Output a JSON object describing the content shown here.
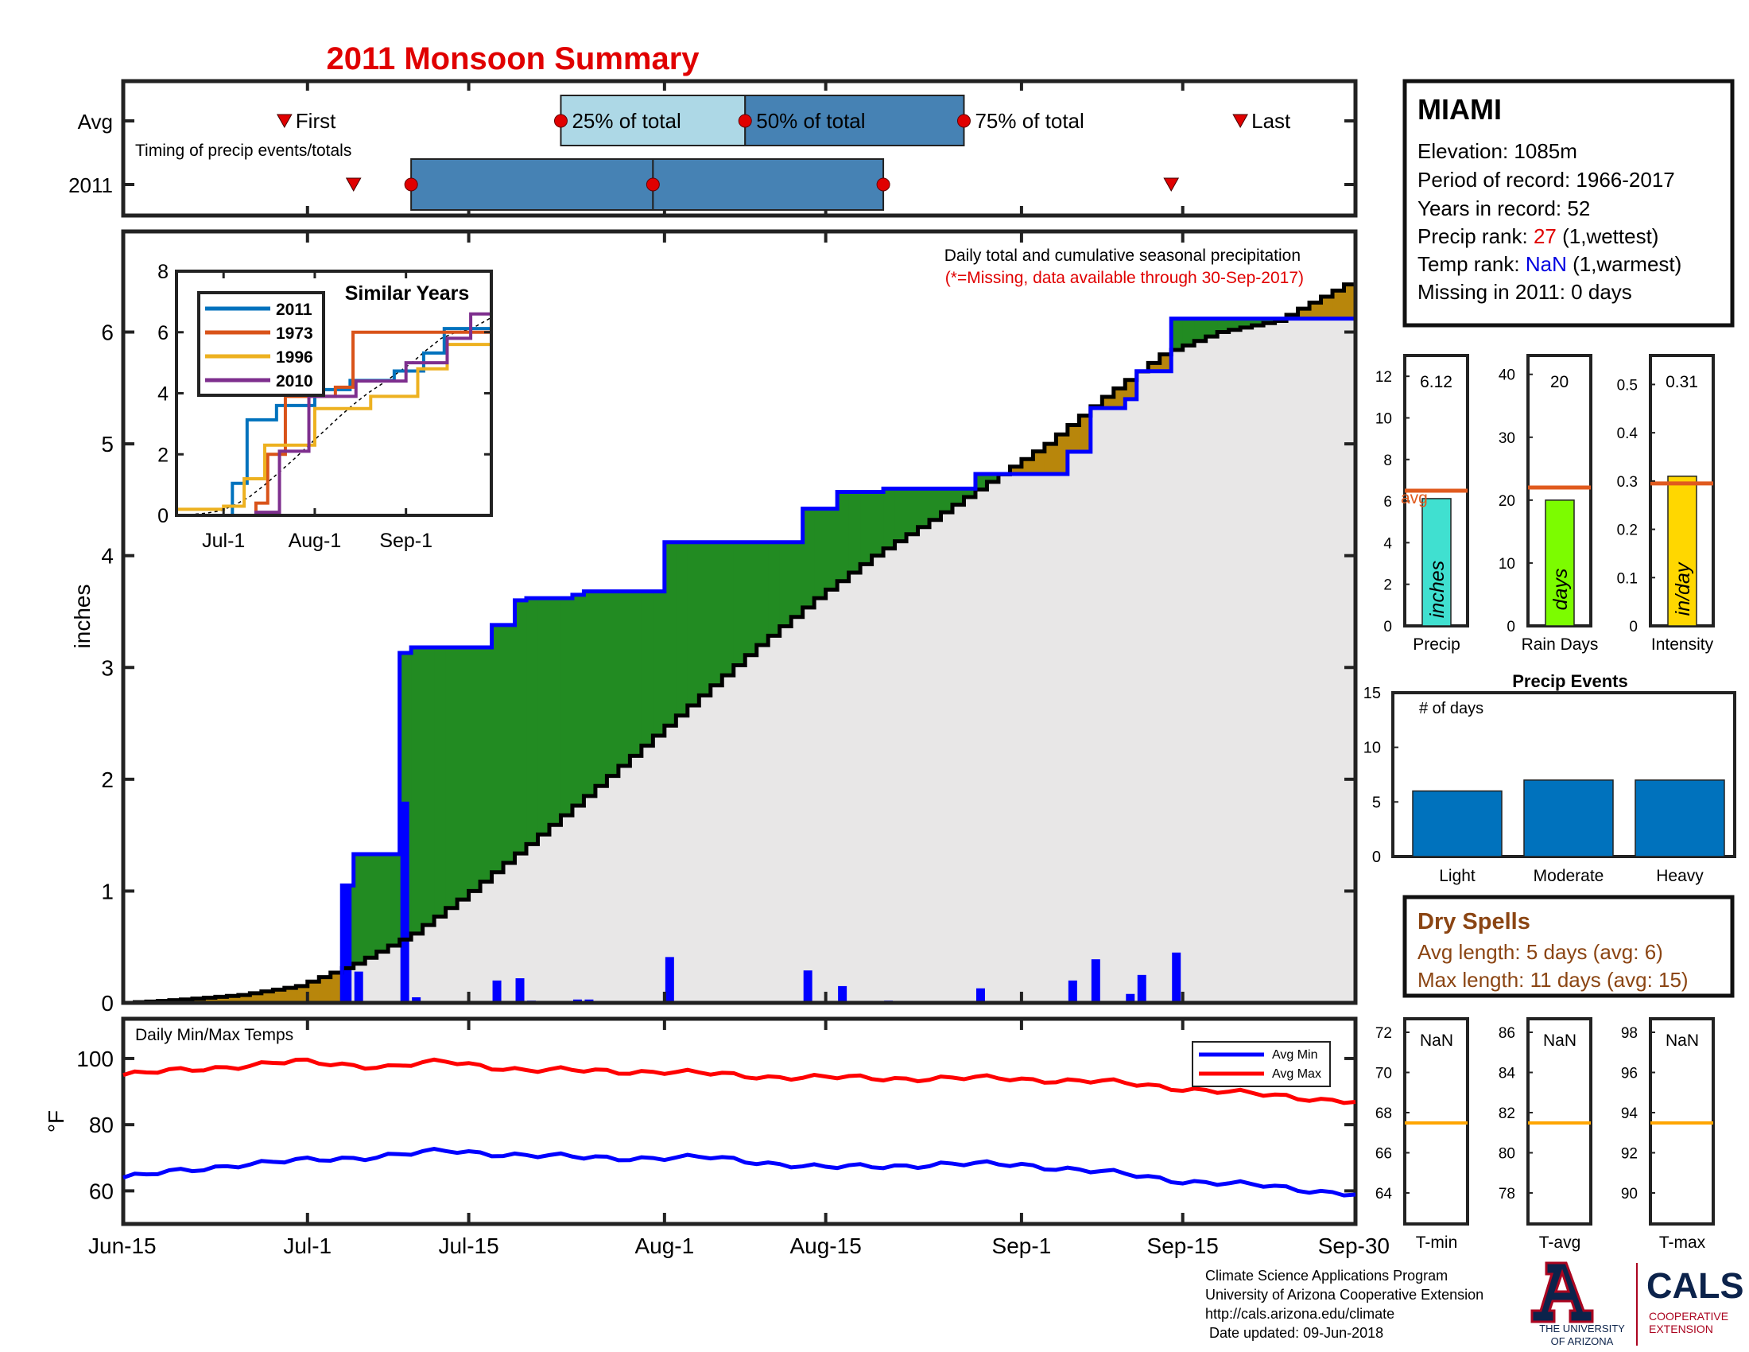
{
  "title": "2011 Monsoon Summary",
  "x_axis": {
    "ticks": [
      "Jun-15",
      "Jul-1",
      "Jul-15",
      "Aug-1",
      "Aug-15",
      "Sep-1",
      "Sep-15",
      "Sep-30"
    ],
    "tick_days": [
      0,
      16,
      30,
      47,
      61,
      78,
      92,
      107
    ]
  },
  "timing": {
    "row_labels": [
      "Avg",
      "2011"
    ],
    "caption": "Timing of precip events/totals",
    "marker_labels": {
      "first": "First",
      "p25": "25% of total",
      "p50": "50% of total",
      "p75": "75% of total",
      "last": "Last"
    },
    "avg": {
      "first": 14,
      "p25": 38,
      "p50": 54,
      "p75": 73,
      "last": 97
    },
    "year": {
      "first": 20,
      "p25": 25,
      "p50": 46,
      "p75": 66,
      "last": 91
    }
  },
  "station": {
    "name": "MIAMI",
    "elevation_label": "Elevation: 1085m",
    "period_label": "Period of record: 1966-2017",
    "years_label": "Years in record: 52",
    "precip_rank_prefix": "Precip rank: ",
    "precip_rank": "27",
    "precip_rank_suffix": " (1,wettest)",
    "temp_rank_prefix": "Temp rank: ",
    "temp_rank": "NaN",
    "temp_rank_suffix": " (1,warmest)",
    "missing_label": "Missing in 2011: 0 days"
  },
  "main_chart": {
    "note": "Daily total and cumulative seasonal precipitation",
    "missing_note": "(*=Missing, data available through 30-Sep-2017)",
    "ylabel": "inches",
    "yticks": [
      "0",
      "1",
      "2",
      "3",
      "4",
      "5",
      "6"
    ],
    "colors": {
      "above": "#228B22",
      "below": "#B8860B",
      "obs": "#0000FF",
      "avg": "#000000",
      "area": "#E8E7E7"
    }
  },
  "similar_years": {
    "title": "Similar Years",
    "legend": [
      "2011",
      "1973",
      "1996",
      "2010"
    ],
    "colors": [
      "#0072BD",
      "#D95319",
      "#EDB120",
      "#7E2F8E"
    ],
    "xticks": [
      "Jul-1",
      "Aug-1",
      "Sep-1"
    ],
    "yticks": [
      "0",
      "2",
      "4",
      "6",
      "8"
    ]
  },
  "mini_bars": [
    {
      "title": "Precip",
      "value_label": "6.12",
      "value": 6.12,
      "avg": 6.5,
      "ymax": 13,
      "yticks": [
        "0",
        "2",
        "4",
        "6",
        "8",
        "10",
        "12"
      ],
      "unit": "inches",
      "color": "#40E0D0",
      "avg_label": "avg"
    },
    {
      "title": "Rain Days",
      "value_label": "20",
      "value": 20,
      "avg": 22,
      "ymax": 43,
      "yticks": [
        "0",
        "10",
        "20",
        "30",
        "40"
      ],
      "unit": "days",
      "color": "#7CFC00"
    },
    {
      "title": "Intensity",
      "value_label": "0.31",
      "value": 0.31,
      "avg": 0.295,
      "ymax": 0.56,
      "yticks": [
        "0",
        "0.1",
        "0.2",
        "0.3",
        "0.4",
        "0.5"
      ],
      "unit": "in/day",
      "color": "#FFD700"
    }
  ],
  "precip_events": {
    "title": "Precip Events",
    "ylabel": "# of days",
    "categories": [
      "Light",
      "Moderate",
      "Heavy"
    ],
    "values": [
      6,
      7,
      7
    ],
    "yticks": [
      "0",
      "5",
      "10",
      "15"
    ],
    "color": "#0072BD"
  },
  "dry_spells": {
    "title": "Dry Spells",
    "avg_line": "Avg length: 5 days (avg: 6)",
    "max_line": "Max length: 11 days (avg: 15)"
  },
  "temps": {
    "label": "Daily Min/Max Temps",
    "ylabel": "°F",
    "yticks": [
      "60",
      "80",
      "100"
    ],
    "legend": [
      "Avg Min",
      "Avg Max"
    ],
    "colors": {
      "min": "#0000FF",
      "max": "#FF0000"
    }
  },
  "temp_panels": [
    {
      "title": "T-min",
      "value_label": "NaN",
      "yticks": [
        "64",
        "66",
        "68",
        "70",
        "72"
      ]
    },
    {
      "title": "T-avg",
      "value_label": "NaN",
      "yticks": [
        "78",
        "80",
        "82",
        "84",
        "86"
      ]
    },
    {
      "title": "T-max",
      "value_label": "NaN",
      "yticks": [
        "90",
        "92",
        "94",
        "96",
        "98"
      ]
    }
  ],
  "footer": {
    "lines": [
      "Climate Science Applications Program",
      "University of Arizona Cooperative Extension",
      "http://cals.arizona.edu/climate",
      " Date updated: 09-Jun-2018"
    ],
    "ua_line1": "THE UNIVERSITY",
    "ua_line2": "OF ARIZONA",
    "cals": "CALS",
    "cals_line1": "COOPERATIVE",
    "cals_line2": "EXTENSION"
  },
  "chart_data": [
    {
      "type": "area",
      "title": "Daily total and cumulative seasonal precipitation",
      "xlabel": "",
      "ylabel": "inches",
      "ylim": [
        0,
        6.9
      ],
      "xlim": [
        "Jun-15",
        "Sep-30"
      ],
      "daily_precip": [
        {
          "date": "Jul-4",
          "value": 1.05
        },
        {
          "date": "Jul-5",
          "value": 0.28
        },
        {
          "date": "Jul-9",
          "value": 1.8
        },
        {
          "date": "Jul-10",
          "value": 0.05
        },
        {
          "date": "Jul-17",
          "value": 0.2
        },
        {
          "date": "Jul-19",
          "value": 0.22
        },
        {
          "date": "Jul-20",
          "value": 0.02
        },
        {
          "date": "Jul-24",
          "value": 0.03
        },
        {
          "date": "Jul-25",
          "value": 0.03
        },
        {
          "date": "Aug-1",
          "value": 0.41
        },
        {
          "date": "Aug-13",
          "value": 0.29
        },
        {
          "date": "Aug-16",
          "value": 0.15
        },
        {
          "date": "Aug-20",
          "value": 0.02
        },
        {
          "date": "Aug-28",
          "value": 0.13
        },
        {
          "date": "Sep-5",
          "value": 0.2
        },
        {
          "date": "Sep-7",
          "value": 0.39
        },
        {
          "date": "Sep-10",
          "value": 0.08
        },
        {
          "date": "Sep-11",
          "value": 0.25
        },
        {
          "date": "Sep-14",
          "value": 0.45
        }
      ],
      "cumulative_2011": [
        {
          "date": "Jun-15",
          "value": 0
        },
        {
          "date": "Jul-4",
          "value": 1.05
        },
        {
          "date": "Jul-5",
          "value": 1.33
        },
        {
          "date": "Jul-9",
          "value": 3.13
        },
        {
          "date": "Jul-10",
          "value": 3.18
        },
        {
          "date": "Jul-17",
          "value": 3.38
        },
        {
          "date": "Jul-19",
          "value": 3.6
        },
        {
          "date": "Jul-20",
          "value": 3.62
        },
        {
          "date": "Jul-24",
          "value": 3.65
        },
        {
          "date": "Jul-25",
          "value": 3.68
        },
        {
          "date": "Aug-1",
          "value": 4.12
        },
        {
          "date": "Aug-13",
          "value": 4.42
        },
        {
          "date": "Aug-16",
          "value": 4.57
        },
        {
          "date": "Aug-20",
          "value": 4.6
        },
        {
          "date": "Aug-28",
          "value": 4.73
        },
        {
          "date": "Sep-5",
          "value": 4.93
        },
        {
          "date": "Sep-7",
          "value": 5.32
        },
        {
          "date": "Sep-10",
          "value": 5.4
        },
        {
          "date": "Sep-11",
          "value": 5.65
        },
        {
          "date": "Sep-14",
          "value": 6.12
        },
        {
          "date": "Sep-30",
          "value": 6.12
        }
      ],
      "cumulative_avg": [
        {
          "date": "Jun-15",
          "value": 0
        },
        {
          "date": "Jun-20",
          "value": 0.03
        },
        {
          "date": "Jun-25",
          "value": 0.07
        },
        {
          "date": "Jun-30",
          "value": 0.15
        },
        {
          "date": "Jul-5",
          "value": 0.35
        },
        {
          "date": "Jul-10",
          "value": 0.62
        },
        {
          "date": "Jul-15",
          "value": 1.0
        },
        {
          "date": "Jul-20",
          "value": 1.42
        },
        {
          "date": "Jul-25",
          "value": 1.85
        },
        {
          "date": "Jul-30",
          "value": 2.3
        },
        {
          "date": "Aug-4",
          "value": 2.75
        },
        {
          "date": "Aug-9",
          "value": 3.2
        },
        {
          "date": "Aug-14",
          "value": 3.62
        },
        {
          "date": "Aug-19",
          "value": 4.0
        },
        {
          "date": "Aug-24",
          "value": 4.32
        },
        {
          "date": "Aug-29",
          "value": 4.66
        },
        {
          "date": "Sep-3",
          "value": 5.0
        },
        {
          "date": "Sep-8",
          "value": 5.42
        },
        {
          "date": "Sep-13",
          "value": 5.8
        },
        {
          "date": "Sep-18",
          "value": 6.0
        },
        {
          "date": "Sep-23",
          "value": 6.1
        },
        {
          "date": "Sep-30",
          "value": 6.48
        }
      ]
    },
    {
      "type": "line",
      "title": "Similar Years",
      "xlabel": "",
      "ylabel": "",
      "ylim": [
        0,
        8
      ],
      "xlim": [
        "Jun-15",
        "Sep-30"
      ],
      "series": [
        {
          "name": "2011",
          "values": [
            {
              "date": "Jun-15",
              "value": 0
            },
            {
              "date": "Jul-4",
              "value": 1.05
            },
            {
              "date": "Jul-9",
              "value": 3.13
            },
            {
              "date": "Jul-19",
              "value": 3.6
            },
            {
              "date": "Aug-1",
              "value": 4.12
            },
            {
              "date": "Aug-13",
              "value": 4.42
            },
            {
              "date": "Aug-28",
              "value": 4.73
            },
            {
              "date": "Sep-7",
              "value": 5.32
            },
            {
              "date": "Sep-14",
              "value": 6.12
            },
            {
              "date": "Sep-30",
              "value": 6.12
            }
          ]
        },
        {
          "name": "1973",
          "values": [
            {
              "date": "Jun-15",
              "value": 0
            },
            {
              "date": "Jul-12",
              "value": 0.4
            },
            {
              "date": "Jul-16",
              "value": 2.0
            },
            {
              "date": "Jul-22",
              "value": 3.9
            },
            {
              "date": "Aug-8",
              "value": 4.2
            },
            {
              "date": "Aug-14",
              "value": 6.0
            },
            {
              "date": "Sep-30",
              "value": 6.1
            }
          ]
        },
        {
          "name": "1996",
          "values": [
            {
              "date": "Jun-15",
              "value": 0.2
            },
            {
              "date": "Jul-1",
              "value": 0.3
            },
            {
              "date": "Jul-8",
              "value": 1.2
            },
            {
              "date": "Jul-15",
              "value": 2.3
            },
            {
              "date": "Aug-1",
              "value": 3.5
            },
            {
              "date": "Aug-20",
              "value": 3.9
            },
            {
              "date": "Sep-5",
              "value": 4.8
            },
            {
              "date": "Sep-15",
              "value": 5.6
            },
            {
              "date": "Sep-30",
              "value": 5.9
            }
          ]
        },
        {
          "name": "2010",
          "values": [
            {
              "date": "Jun-15",
              "value": 0
            },
            {
              "date": "Jul-12",
              "value": 0.1
            },
            {
              "date": "Jul-20",
              "value": 2.1
            },
            {
              "date": "Jul-30",
              "value": 3.9
            },
            {
              "date": "Aug-15",
              "value": 4.4
            },
            {
              "date": "Sep-1",
              "value": 5.0
            },
            {
              "date": "Sep-15",
              "value": 5.8
            },
            {
              "date": "Sep-23",
              "value": 6.6
            },
            {
              "date": "Sep-30",
              "value": 6.6
            }
          ]
        }
      ]
    },
    {
      "type": "line",
      "title": "Daily Min/Max Temps",
      "xlabel": "",
      "ylabel": "°F",
      "ylim": [
        50,
        112
      ],
      "xlim": [
        "Jun-15",
        "Sep-30"
      ],
      "series": [
        {
          "name": "Avg Max",
          "values": [
            {
              "date": "Jun-15",
              "value": 95
            },
            {
              "date": "Jun-22",
              "value": 97
            },
            {
              "date": "Jun-30",
              "value": 99
            },
            {
              "date": "Jul-8",
              "value": 97.5
            },
            {
              "date": "Jul-13",
              "value": 99
            },
            {
              "date": "Jul-20",
              "value": 96.5
            },
            {
              "date": "Aug-1",
              "value": 96
            },
            {
              "date": "Aug-10",
              "value": 94.5
            },
            {
              "date": "Aug-20",
              "value": 94
            },
            {
              "date": "Aug-30",
              "value": 94
            },
            {
              "date": "Sep-8",
              "value": 93
            },
            {
              "date": "Sep-15",
              "value": 91
            },
            {
              "date": "Sep-22",
              "value": 89
            },
            {
              "date": "Sep-30",
              "value": 87
            }
          ]
        },
        {
          "name": "Avg Min",
          "values": [
            {
              "date": "Jun-15",
              "value": 64
            },
            {
              "date": "Jun-25",
              "value": 68
            },
            {
              "date": "Jul-5",
              "value": 70
            },
            {
              "date": "Jul-13",
              "value": 72
            },
            {
              "date": "Jul-25",
              "value": 70
            },
            {
              "date": "Aug-5",
              "value": 70
            },
            {
              "date": "Aug-15",
              "value": 67
            },
            {
              "date": "Aug-25",
              "value": 68
            },
            {
              "date": "Sep-1",
              "value": 68
            },
            {
              "date": "Sep-10",
              "value": 65
            },
            {
              "date": "Sep-15",
              "value": 63
            },
            {
              "date": "Sep-22",
              "value": 61.5
            },
            {
              "date": "Sep-30",
              "value": 59
            }
          ]
        }
      ]
    },
    {
      "type": "bar",
      "title": "Precip Events",
      "categories": [
        "Light",
        "Moderate",
        "Heavy"
      ],
      "values": [
        6,
        7,
        7
      ],
      "ylabel": "# of days",
      "ylim": [
        0,
        15
      ]
    },
    {
      "type": "bar",
      "title": "",
      "categories": [
        "Precip",
        "Rain Days",
        "Intensity"
      ],
      "series": [
        {
          "name": "2011",
          "values": [
            6.12,
            20,
            0.31
          ]
        },
        {
          "name": "avg",
          "values": [
            6.5,
            22,
            0.295
          ]
        }
      ]
    }
  ]
}
